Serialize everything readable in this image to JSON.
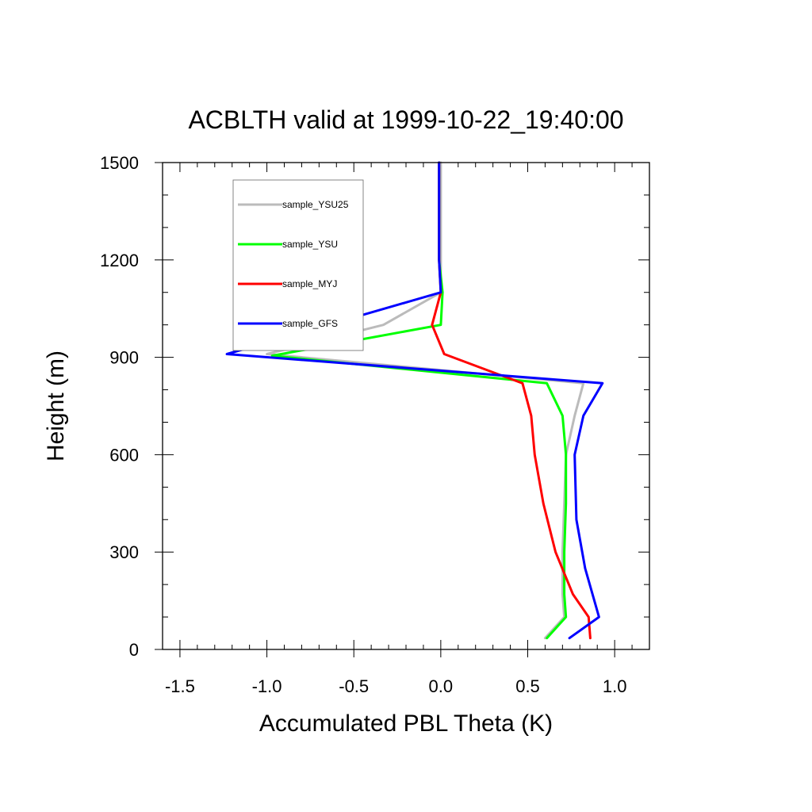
{
  "chart_data": {
    "type": "line",
    "title": "ACBLTH valid at 1999-10-22_19:40:00",
    "xlabel": "Accumulated PBL Theta (K)",
    "ylabel": "Height (m)",
    "xlim": [
      -1.6,
      1.2
    ],
    "ylim": [
      0,
      1500
    ],
    "x_ticks": [
      -1.5,
      -1.0,
      -0.5,
      0.0,
      0.5,
      1.0
    ],
    "x_tick_labels": [
      "-1.5",
      "-1.0",
      "-0.5",
      "0.0",
      "0.5",
      "1.0"
    ],
    "y_ticks": [
      0,
      300,
      600,
      900,
      1200,
      1500
    ],
    "y_tick_labels": [
      "0",
      "300",
      "600",
      "900",
      "1200",
      "1500"
    ],
    "grid": false,
    "legend_position": "top-left",
    "series": [
      {
        "name": "sample_YSU25",
        "color": "#bbbbbb",
        "points": [
          [
            0.6,
            35
          ],
          [
            0.71,
            100
          ],
          [
            0.7,
            170
          ],
          [
            0.7,
            300
          ],
          [
            0.71,
            450
          ],
          [
            0.72,
            600
          ],
          [
            0.77,
            720
          ],
          [
            0.82,
            820
          ],
          [
            -1.0,
            910
          ],
          [
            -0.33,
            1000
          ],
          [
            0.0,
            1100
          ],
          [
            0.0,
            1200
          ],
          [
            0.0,
            1500
          ]
        ]
      },
      {
        "name": "sample_YSU",
        "color": "#00ff00",
        "points": [
          [
            0.61,
            35
          ],
          [
            0.72,
            100
          ],
          [
            0.71,
            170
          ],
          [
            0.71,
            300
          ],
          [
            0.72,
            450
          ],
          [
            0.72,
            600
          ],
          [
            0.7,
            720
          ],
          [
            0.61,
            820
          ],
          [
            -0.97,
            905
          ],
          [
            0.0,
            1000
          ],
          [
            0.01,
            1100
          ],
          [
            -0.01,
            1200
          ],
          [
            -0.01,
            1500
          ]
        ]
      },
      {
        "name": "sample_MYJ",
        "color": "#ff0000",
        "points": [
          [
            0.86,
            35
          ],
          [
            0.85,
            100
          ],
          [
            0.76,
            170
          ],
          [
            0.66,
            300
          ],
          [
            0.59,
            450
          ],
          [
            0.54,
            600
          ],
          [
            0.52,
            720
          ],
          [
            0.47,
            820
          ],
          [
            0.32,
            850
          ],
          [
            0.02,
            910
          ],
          [
            -0.05,
            1000
          ],
          [
            0.0,
            1100
          ],
          [
            -0.01,
            1200
          ],
          [
            -0.01,
            1500
          ]
        ]
      },
      {
        "name": "sample_GFS",
        "color": "#0000ff",
        "points": [
          [
            0.74,
            35
          ],
          [
            0.91,
            100
          ],
          [
            0.83,
            250
          ],
          [
            0.78,
            400
          ],
          [
            0.77,
            600
          ],
          [
            0.82,
            720
          ],
          [
            0.93,
            820
          ],
          [
            -1.23,
            910
          ],
          [
            0.0,
            1100
          ],
          [
            -0.01,
            1200
          ],
          [
            -0.01,
            1500
          ]
        ]
      }
    ]
  }
}
